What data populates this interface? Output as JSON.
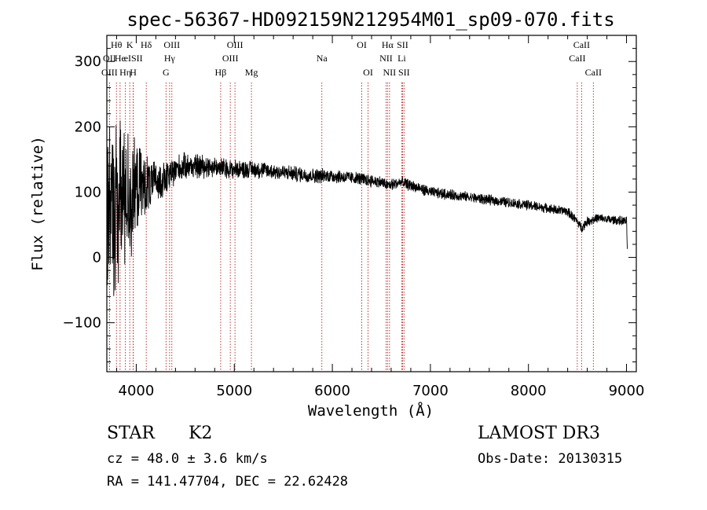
{
  "chart_data": {
    "type": "line",
    "title": "spec-56367-HD092159N212954M01_sp09-070.fits",
    "xlabel": "Wavelength (Å)",
    "ylabel": "Flux (relative)",
    "xlim": [
      3700,
      9100
    ],
    "ylim": [
      -175,
      340
    ],
    "x_ticks": [
      4000,
      5000,
      6000,
      7000,
      8000,
      9000
    ],
    "x_tick_labels": [
      "4000",
      "5000",
      "6000",
      "7000",
      "8000",
      "9000"
    ],
    "y_ticks": [
      -100,
      0,
      100,
      200,
      300
    ],
    "y_tick_labels": [
      "−100",
      "0",
      "100",
      "200",
      "300"
    ],
    "spectrum_anchors": {
      "wavelength": [
        3700,
        3750,
        3800,
        3850,
        3900,
        3950,
        4000,
        4100,
        4200,
        4300,
        4400,
        4500,
        4700,
        5000,
        5200,
        5500,
        5800,
        6000,
        6300,
        6500,
        6563,
        6700,
        7000,
        7500,
        8000,
        8400,
        8500,
        8540,
        8600,
        8700,
        9000,
        9010
      ],
      "flux": [
        50,
        60,
        80,
        90,
        100,
        90,
        105,
        110,
        115,
        120,
        135,
        140,
        140,
        135,
        135,
        130,
        125,
        125,
        120,
        115,
        110,
        115,
        100,
        90,
        80,
        70,
        55,
        45,
        55,
        60,
        55,
        10
      ]
    },
    "noise_anchors": {
      "wavelength": [
        3700,
        3800,
        3900,
        4000,
        4100,
        4200,
        4400,
        5000,
        6000,
        7000,
        8500,
        9000
      ],
      "amplitude": [
        120,
        110,
        90,
        60,
        40,
        25,
        18,
        12,
        9,
        7,
        6,
        6
      ]
    },
    "line_markers": [
      {
        "label": "Hθ",
        "wavelength": 3798,
        "row": 0
      },
      {
        "label": "OII",
        "wavelength": 3727,
        "row": 1
      },
      {
        "label": "OIII",
        "wavelength": 3727,
        "row": 2
      },
      {
        "label": "He",
        "wavelength": 3835,
        "row": 1
      },
      {
        "label": "K",
        "wavelength": 3934,
        "row": 0
      },
      {
        "label": "Hη",
        "wavelength": 3889,
        "row": 2
      },
      {
        "label": "Hδ",
        "wavelength": 4102,
        "row": 0
      },
      {
        "label": "eISII",
        "wavelength": 3970,
        "row": 1
      },
      {
        "label": "H",
        "wavelength": 3969,
        "row": 2
      },
      {
        "label": "OIII",
        "wavelength": 4363,
        "row": 0
      },
      {
        "label": "Hγ",
        "wavelength": 4340,
        "row": 1
      },
      {
        "label": "G",
        "wavelength": 4304,
        "row": 2
      },
      {
        "label": "OIII",
        "wavelength": 5007,
        "row": 0
      },
      {
        "label": "OIII",
        "wavelength": 4959,
        "row": 1
      },
      {
        "label": "Hβ",
        "wavelength": 4861,
        "row": 2
      },
      {
        "label": "Mg",
        "wavelength": 5175,
        "row": 2
      },
      {
        "label": "Na",
        "wavelength": 5893,
        "row": 1
      },
      {
        "label": "OI",
        "wavelength": 6300,
        "row": 0
      },
      {
        "label": "OI",
        "wavelength": 6364,
        "row": 2
      },
      {
        "label": "Hα",
        "wavelength": 6563,
        "row": 0
      },
      {
        "label": "SII",
        "wavelength": 6716,
        "row": 0
      },
      {
        "label": "NII",
        "wavelength": 6548,
        "row": 1
      },
      {
        "label": "Li",
        "wavelength": 6708,
        "row": 1
      },
      {
        "label": "NII",
        "wavelength": 6583,
        "row": 2
      },
      {
        "label": "SII",
        "wavelength": 6731,
        "row": 2
      },
      {
        "label": "CaII",
        "wavelength": 8542,
        "row": 0
      },
      {
        "label": "CaII",
        "wavelength": 8498,
        "row": 1
      },
      {
        "label": "CaII",
        "wavelength": 8662,
        "row": 2
      }
    ],
    "colors": {
      "spectrum": "#000000",
      "marker_line": "#b22222",
      "axes": "#000000"
    }
  },
  "info": {
    "object_class": "STAR",
    "subclass": "K2",
    "survey": "LAMOST DR3",
    "redshift": "cz = 48.0 ± 3.6 km/s",
    "obs_date": "Obs-Date: 20130315",
    "coords": "RA = 141.47704, DEC =  22.62428"
  }
}
